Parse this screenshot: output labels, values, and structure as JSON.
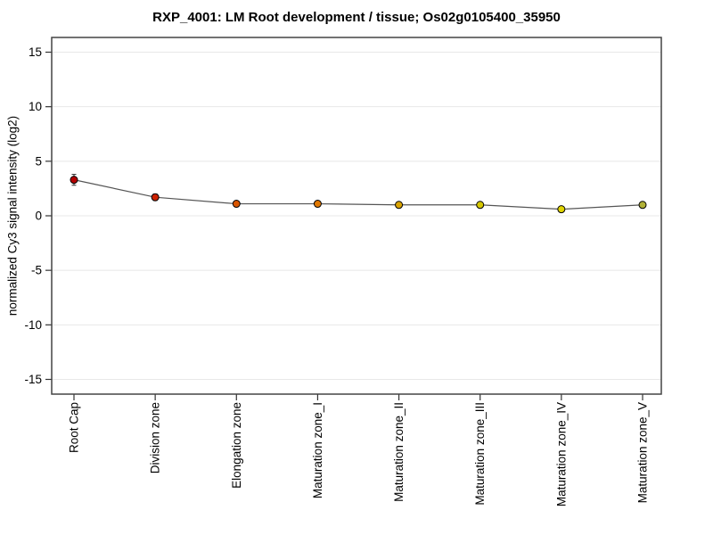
{
  "title": "RXP_4001: LM Root development / tissue; Os02g0105400_35950",
  "chart_data": {
    "type": "line",
    "categories": [
      "Root Cap",
      "Division zone",
      "Elongation zone",
      "Maturation zone_I",
      "Maturation zone_II",
      "Maturation zone_III",
      "Maturation zone_IV",
      "Maturation zone_V"
    ],
    "values": [
      3.3,
      1.7,
      1.1,
      1.1,
      1.0,
      1.0,
      0.6,
      1.0
    ],
    "errors": [
      0.5,
      0.3,
      0.2,
      0.2,
      0.2,
      0.2,
      0.25,
      0.2
    ],
    "point_colors": [
      "#b40000",
      "#cc2200",
      "#d85500",
      "#e07800",
      "#d9a300",
      "#d6c800",
      "#e0d400",
      "#b2b238"
    ],
    "title": "RXP_4001: LM Root development / tissue; Os02g0105400_35950",
    "xlabel": "",
    "ylabel": "normalized Cy3 signal intensity (log2)",
    "yticks": [
      15,
      10,
      5,
      0,
      -5,
      -10,
      -15
    ],
    "ylim": [
      -16.35,
      16.35
    ],
    "grid": "horizontal",
    "legend": "none",
    "colors": {
      "line": "#555555",
      "grid": "#e8e8e8",
      "frame": "#444444",
      "tick": "#333333",
      "marker_outline": "#000000",
      "text": "#000000"
    }
  }
}
